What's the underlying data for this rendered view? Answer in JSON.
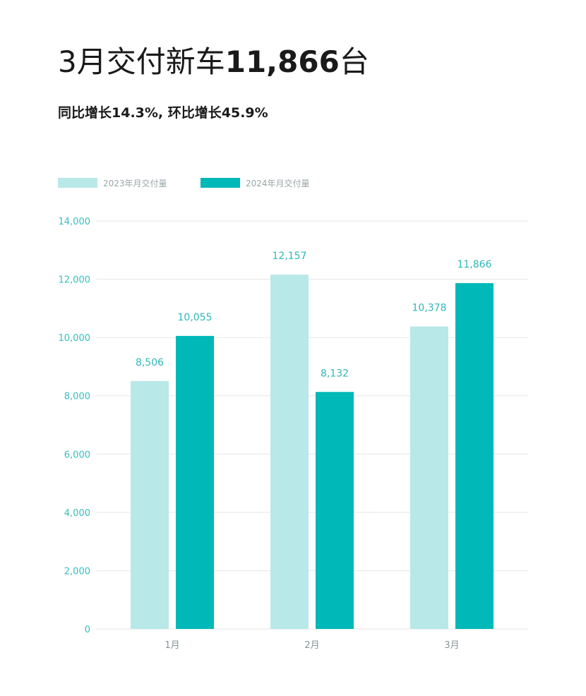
{
  "header": {
    "title_prefix": "3月交付新车",
    "title_number": "11,866",
    "title_suffix": "台",
    "subtitle": "同比增长14.3%, 环比增长45.9%"
  },
  "colors": {
    "series_2023": "#b8e8e8",
    "series_2024": "#00b8b8",
    "tick_text": "#36bdbf",
    "grid": "#e6e6e6"
  },
  "chart_data": {
    "type": "bar",
    "categories": [
      "1月",
      "2月",
      "3月"
    ],
    "series": [
      {
        "name": "2023年月交付量",
        "values": [
          8506,
          12157,
          10378
        ],
        "labels": [
          "8,506",
          "12,157",
          "10,378"
        ]
      },
      {
        "name": "2024年月交付量",
        "values": [
          10055,
          8132,
          11866
        ],
        "labels": [
          "10,055",
          "8,132",
          "11,866"
        ]
      }
    ],
    "yticks": [
      0,
      2000,
      4000,
      6000,
      8000,
      10000,
      12000,
      14000
    ],
    "ytick_labels": [
      "0",
      "2,000",
      "4,000",
      "6,000",
      "8,000",
      "10,000",
      "12,000",
      "14,000"
    ],
    "ylim": [
      0,
      14000
    ],
    "legend_position": "top-left",
    "grid": true
  }
}
